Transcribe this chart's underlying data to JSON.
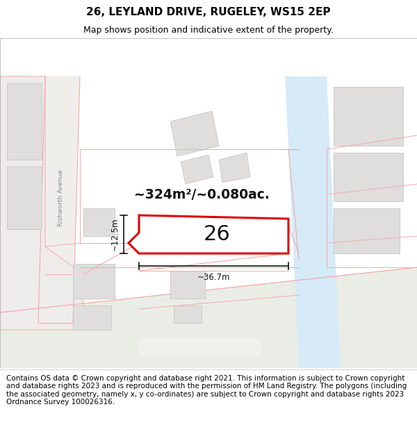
{
  "title": "26, LEYLAND DRIVE, RUGELEY, WS15 2EP",
  "subtitle": "Map shows position and indicative extent of the property.",
  "footer": "Contains OS data © Crown copyright and database right 2021. This information is subject to Crown copyright and database rights 2023 and is reproduced with the permission of HM Land Registry. The polygons (including the associated geometry, namely x, y co-ordinates) are subject to Crown copyright and database rights 2023 Ordnance Survey 100026316.",
  "area_text": "~324m²/~0.080ac.",
  "house_number": "26",
  "dim_width": "~36.7m",
  "dim_height": "~12.5m",
  "bg_color": "#f7f5f2",
  "road_fill": "#eaede5",
  "water_fill": "#d6eaf7",
  "plot_fill": "#ffffff",
  "plot_edge": "#e00000",
  "boundary_color": "#f0aaaa",
  "building_fill": "#e0dedd",
  "building_edge": "#c8c6c5",
  "street_label_color": "#888888",
  "title_fontsize": 11,
  "subtitle_fontsize": 9,
  "footer_fontsize": 7.5
}
